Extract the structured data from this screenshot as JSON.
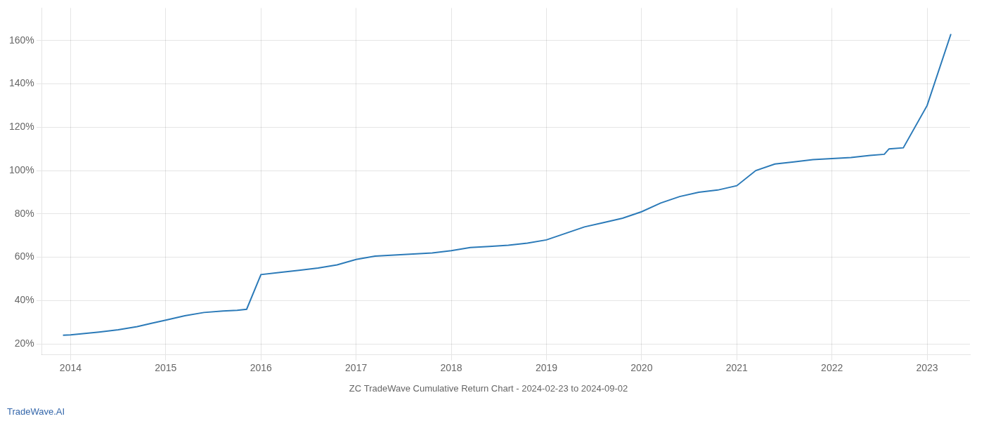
{
  "chart_data": {
    "type": "line",
    "title": "ZC TradeWave Cumulative Return Chart - 2024-02-23 to 2024-09-02",
    "annotations": [
      {
        "text": "TradeWave.AI",
        "color": "#3366aa"
      }
    ],
    "x": [
      2013.92,
      2014.0,
      2014.15,
      2014.3,
      2014.5,
      2014.7,
      2014.85,
      2015.0,
      2015.2,
      2015.4,
      2015.6,
      2015.75,
      2015.85,
      2016.0,
      2016.2,
      2016.4,
      2016.6,
      2016.8,
      2017.0,
      2017.2,
      2017.4,
      2017.6,
      2017.8,
      2018.0,
      2018.2,
      2018.4,
      2018.6,
      2018.8,
      2019.0,
      2019.2,
      2019.4,
      2019.6,
      2019.8,
      2020.0,
      2020.2,
      2020.4,
      2020.6,
      2020.8,
      2021.0,
      2021.2,
      2021.4,
      2021.6,
      2021.8,
      2022.0,
      2022.2,
      2022.4,
      2022.55,
      2022.6,
      2022.75,
      2023.0,
      2023.25
    ],
    "values": [
      24.0,
      24.2,
      24.8,
      25.5,
      26.5,
      28.0,
      29.5,
      31.0,
      33.0,
      34.5,
      35.2,
      35.5,
      36.0,
      52.0,
      53.0,
      54.0,
      55.0,
      56.5,
      59.0,
      60.5,
      61.0,
      61.5,
      62.0,
      63.0,
      64.5,
      65.0,
      65.5,
      66.5,
      68.0,
      71.0,
      74.0,
      76.0,
      78.0,
      81.0,
      85.0,
      88.0,
      90.0,
      91.0,
      93.0,
      100.0,
      103.0,
      104.0,
      105.0,
      105.5,
      106.0,
      107.0,
      107.5,
      110.0,
      110.5,
      130.0,
      163.0
    ],
    "color": "#2b7ab8",
    "xlim": [
      2013.7,
      2023.45
    ],
    "ylim": [
      15,
      175
    ],
    "xticks": [
      2014,
      2015,
      2016,
      2017,
      2018,
      2019,
      2020,
      2021,
      2022,
      2023
    ],
    "yticks": [
      {
        "value": 20,
        "label": "20%"
      },
      {
        "value": 40,
        "label": "40%"
      },
      {
        "value": 60,
        "label": "60%"
      },
      {
        "value": 80,
        "label": "80%"
      },
      {
        "value": 100,
        "label": "100%"
      },
      {
        "value": 120,
        "label": "120%"
      },
      {
        "value": 140,
        "label": "140%"
      },
      {
        "value": 160,
        "label": "160%"
      }
    ],
    "grid": true
  }
}
